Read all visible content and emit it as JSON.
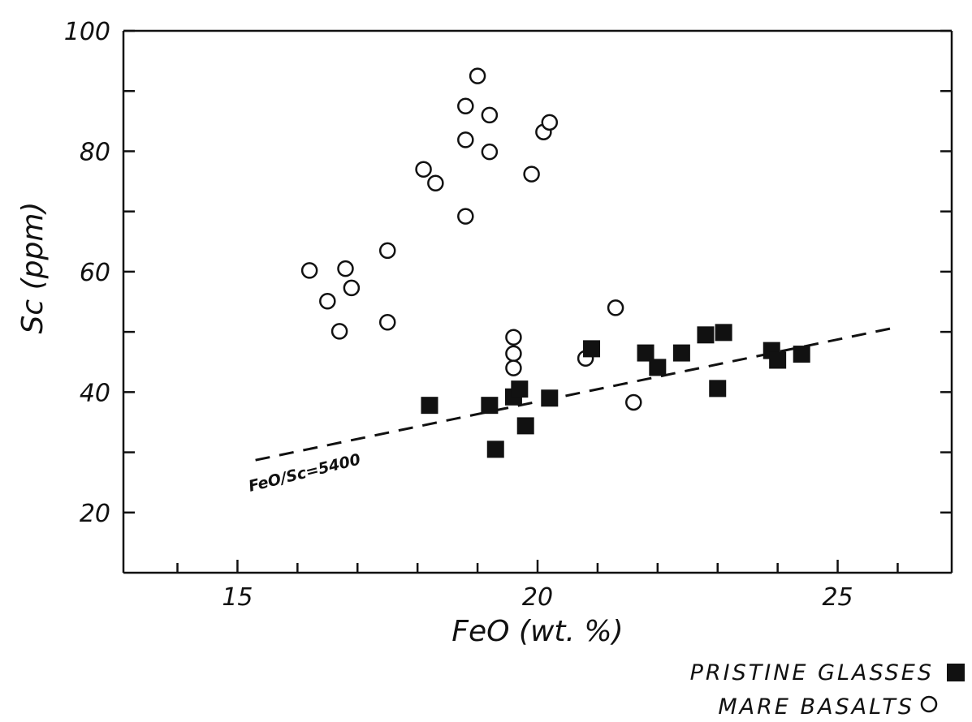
{
  "chart_data": {
    "type": "scatter",
    "xlabel": "FeO (wt. %)",
    "ylabel": "Sc (ppm)",
    "xlim": [
      13.1,
      26.9
    ],
    "ylim": [
      10,
      100
    ],
    "x_ticks_major": [
      15,
      20,
      25
    ],
    "x_ticks_minor": [
      14,
      16,
      17,
      18,
      19,
      21,
      22,
      23,
      24,
      26
    ],
    "y_ticks_major": [
      20,
      40,
      60,
      80,
      100
    ],
    "y_ticks_minor": [
      30,
      50,
      70,
      90
    ],
    "grid": false,
    "legend_position": "bottom-right",
    "series": [
      {
        "name": "PRISTINE GLASSES",
        "marker": "filled-square",
        "points": [
          [
            18.2,
            37.8
          ],
          [
            19.2,
            37.8
          ],
          [
            19.3,
            30.5
          ],
          [
            19.6,
            39.2
          ],
          [
            19.7,
            40.5
          ],
          [
            19.8,
            34.4
          ],
          [
            20.2,
            39.0
          ],
          [
            20.9,
            47.2
          ],
          [
            21.8,
            46.5
          ],
          [
            22.0,
            44.1
          ],
          [
            22.4,
            46.5
          ],
          [
            22.8,
            49.5
          ],
          [
            23.0,
            40.6
          ],
          [
            23.1,
            49.9
          ],
          [
            23.9,
            46.9
          ],
          [
            24.0,
            45.3
          ],
          [
            24.4,
            46.3
          ]
        ]
      },
      {
        "name": "MARE BASALTS",
        "marker": "open-circle",
        "points": [
          [
            16.2,
            60.2
          ],
          [
            16.5,
            55.1
          ],
          [
            16.7,
            50.1
          ],
          [
            16.8,
            60.5
          ],
          [
            16.9,
            57.3
          ],
          [
            17.5,
            63.5
          ],
          [
            17.5,
            51.6
          ],
          [
            18.1,
            77.0
          ],
          [
            18.3,
            74.7
          ],
          [
            18.8,
            87.5
          ],
          [
            18.8,
            81.9
          ],
          [
            18.8,
            69.2
          ],
          [
            19.0,
            92.5
          ],
          [
            19.2,
            86.0
          ],
          [
            19.2,
            79.9
          ],
          [
            19.6,
            49.1
          ],
          [
            19.6,
            46.4
          ],
          [
            19.6,
            44.0
          ],
          [
            19.9,
            76.2
          ],
          [
            20.1,
            83.2
          ],
          [
            20.2,
            84.8
          ],
          [
            20.8,
            45.6
          ],
          [
            21.3,
            54.0
          ],
          [
            21.6,
            38.3
          ]
        ]
      }
    ],
    "reference_line": {
      "label": "FeO/Sc=5400",
      "style": "dashed",
      "points": [
        [
          15.3,
          28.7
        ],
        [
          25.9,
          50.6
        ]
      ]
    },
    "legend": [
      {
        "label": "PRISTINE GLASSES",
        "marker": "filled-square"
      },
      {
        "label": "MARE BASALTS",
        "marker": "open-circle"
      }
    ]
  }
}
